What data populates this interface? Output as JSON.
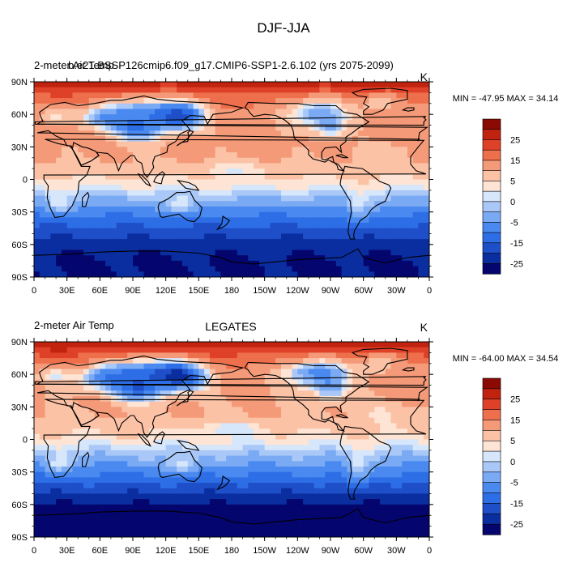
{
  "figure": {
    "title": "DJF-JJA"
  },
  "colors": {
    "land_outline": "#000000",
    "frame": "#000000"
  },
  "chart_data": [
    {
      "type": "heatmap",
      "title_left": "2-meter Air Temp",
      "title_center": "b.e21.BSSP126cmip6.f09_g17.CMIP6-SSP1-2.6.102 (yrs 2075-2099)",
      "units": "K",
      "stats": "MIN = -47.95 MAX =  34.14",
      "x_ticks": [
        "0",
        "30E",
        "60E",
        "90E",
        "120E",
        "150E",
        "180",
        "150W",
        "120W",
        "90W",
        "60W",
        "30W",
        "0"
      ],
      "y_ticks": [
        "90N",
        "60N",
        "30N",
        "0",
        "30S",
        "60S",
        "90S"
      ],
      "colorbar": {
        "levels": [
          -30,
          -25,
          -20,
          -15,
          -10,
          -5,
          -2,
          0,
          2,
          5,
          10,
          15,
          20,
          25,
          30
        ],
        "labels": [
          "25",
          "15",
          "5",
          "0",
          "-5",
          "-15",
          "-25"
        ],
        "colors": [
          "#05056e",
          "#0a2ea0",
          "#1e4fc8",
          "#2d6ee6",
          "#4a8af0",
          "#7aaaf4",
          "#a9c8f8",
          "#d6e6fb",
          "#fde4d4",
          "#fbc2a6",
          "#f59a78",
          "#ee6f4c",
          "#de4127",
          "#c0230f",
          "#8c0a04"
        ]
      },
      "lat_profile": [
        -28,
        -28,
        -26,
        -20,
        -13,
        -5,
        1,
        5,
        8,
        9,
        10,
        12,
        16,
        26
      ]
    },
    {
      "type": "heatmap",
      "title_left": "2-meter Air Temp",
      "title_center": "LEGATES",
      "units": "K",
      "stats": "MIN = -64.00 MAX =  34.54",
      "x_ticks": [
        "0",
        "30E",
        "60E",
        "90E",
        "120E",
        "150E",
        "180",
        "150W",
        "120W",
        "90W",
        "60W",
        "30W",
        "0"
      ],
      "y_ticks": [
        "90N",
        "60N",
        "30N",
        "0",
        "30S",
        "60S",
        "90S"
      ],
      "colorbar": {
        "levels": [
          -30,
          -25,
          -20,
          -15,
          -10,
          -5,
          -2,
          0,
          2,
          5,
          10,
          15,
          20,
          25,
          30
        ],
        "labels": [
          "25",
          "15",
          "5",
          "0",
          "-5",
          "-15",
          "-25"
        ],
        "colors": [
          "#05056e",
          "#0a2ea0",
          "#1e4fc8",
          "#2d6ee6",
          "#4a8af0",
          "#7aaaf4",
          "#a9c8f8",
          "#d6e6fb",
          "#fde4d4",
          "#fbc2a6",
          "#f59a78",
          "#ee6f4c",
          "#de4127",
          "#c0230f",
          "#8c0a04"
        ]
      },
      "lat_profile": [
        -30,
        -30,
        -29,
        -22,
        -14,
        -6,
        0,
        4,
        7,
        8,
        9,
        11,
        17,
        27
      ]
    }
  ]
}
